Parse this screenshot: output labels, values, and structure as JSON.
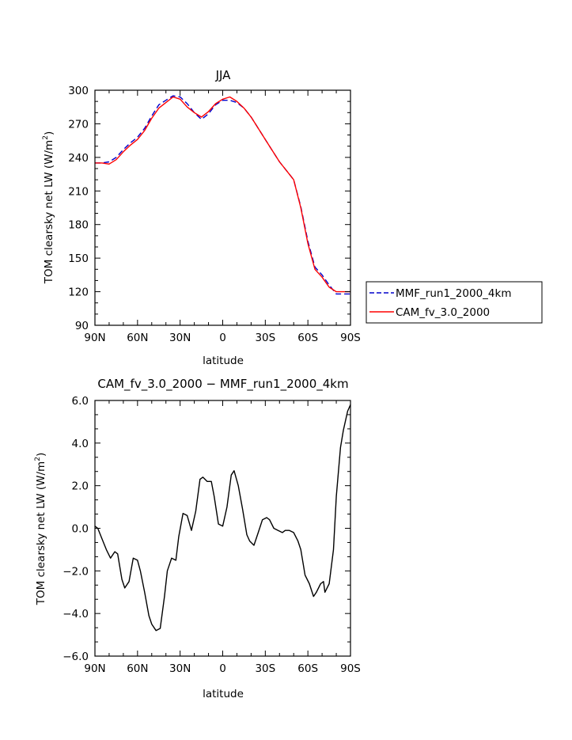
{
  "chart_data": [
    {
      "type": "line",
      "title": "JJA",
      "xlabel": "latitude",
      "ylabel": "TOM clearsky net LW (W/m²)",
      "ylabel_main": "TOM clearsky net LW (W/m",
      "ylabel_sup": "2",
      "ylabel_end": ")",
      "x_ticks": [
        "90N",
        "60N",
        "30N",
        "0",
        "30S",
        "60S",
        "90S"
      ],
      "y_ticks": [
        "90",
        "120",
        "150",
        "180",
        "210",
        "240",
        "270",
        "300"
      ],
      "xlim": [
        90,
        -90
      ],
      "ylim": [
        90,
        300
      ],
      "grid": false,
      "legend_position": "outside-right",
      "series": [
        {
          "name": "MMF_run1_2000_4km",
          "color": "#0000cc",
          "dash": "dashed",
          "x": [
            90,
            85,
            80,
            75,
            70,
            65,
            60,
            55,
            50,
            45,
            40,
            35,
            30,
            25,
            20,
            15,
            10,
            5,
            0,
            -5,
            -10,
            -15,
            -20,
            -25,
            -30,
            -35,
            -40,
            -45,
            -50,
            -55,
            -60,
            -65,
            -70,
            -75,
            -80,
            -85,
            -90
          ],
          "y": [
            235,
            235,
            236,
            240,
            247,
            253,
            258,
            266,
            277,
            287,
            291,
            295,
            294,
            288,
            280,
            274,
            279,
            287,
            291,
            291,
            289,
            284,
            276,
            266,
            256,
            246,
            236,
            228,
            220,
            196,
            165,
            142,
            135,
            126,
            118,
            118,
            118
          ]
        },
        {
          "name": "CAM_fv_3.0_2000",
          "color": "#ff0000",
          "dash": "solid",
          "x": [
            90,
            85,
            80,
            75,
            70,
            65,
            60,
            55,
            50,
            45,
            40,
            35,
            30,
            25,
            20,
            15,
            10,
            5,
            0,
            -5,
            -10,
            -15,
            -20,
            -25,
            -30,
            -35,
            -40,
            -45,
            -50,
            -55,
            -60,
            -65,
            -70,
            -75,
            -80,
            -85,
            -90
          ],
          "y": [
            235,
            235,
            234,
            238,
            245,
            251,
            256,
            264,
            275,
            284,
            289,
            294,
            292,
            285,
            280,
            276,
            281,
            288,
            292,
            294,
            290,
            284,
            276,
            266,
            256,
            246,
            236,
            228,
            220,
            195,
            163,
            140,
            133,
            124,
            120,
            120,
            120
          ]
        }
      ]
    },
    {
      "type": "line",
      "title": "CAM_fv_3.0_2000 − MMF_run1_2000_4km",
      "xlabel": "latitude",
      "ylabel": "TOM clearsky net LW (W/m²)",
      "ylabel_main": "TOM clearsky net LW (W/m",
      "ylabel_sup": "2",
      "ylabel_end": ")",
      "x_ticks": [
        "90N",
        "60N",
        "30N",
        "0",
        "30S",
        "60S",
        "90S"
      ],
      "y_ticks": [
        "−6.0",
        "−4.0",
        "−2.0",
        "0.0",
        "2.0",
        "4.0",
        "6.0"
      ],
      "xlim": [
        90,
        -90
      ],
      "ylim": [
        -6,
        6
      ],
      "grid": false,
      "series": [
        {
          "color": "#000000",
          "dash": "solid",
          "x": [
            90,
            88,
            85,
            82,
            79,
            76,
            74,
            71,
            69,
            66,
            63,
            60,
            58,
            55,
            52,
            50,
            47,
            44,
            41,
            39,
            36,
            33,
            31,
            28,
            25,
            22,
            19,
            16,
            14,
            11,
            8,
            6,
            3,
            0,
            -3,
            -6,
            -8,
            -11,
            -14,
            -17,
            -19,
            -22,
            -25,
            -28,
            -31,
            -33,
            -36,
            -39,
            -42,
            -44,
            -47,
            -50,
            -53,
            -55,
            -58,
            -61,
            -64,
            -66,
            -69,
            -71,
            -72,
            -75,
            -78,
            -80,
            -83,
            -85,
            -88,
            -90
          ],
          "y": [
            0.1,
            0.0,
            -0.5,
            -1.0,
            -1.4,
            -1.1,
            -1.2,
            -2.4,
            -2.8,
            -2.5,
            -1.4,
            -1.5,
            -2.0,
            -3.0,
            -4.1,
            -4.5,
            -4.8,
            -4.7,
            -3.2,
            -2.0,
            -1.4,
            -1.5,
            -0.4,
            0.7,
            0.6,
            -0.1,
            0.8,
            2.3,
            2.4,
            2.2,
            2.2,
            1.5,
            0.2,
            0.1,
            1.0,
            2.5,
            2.7,
            2.0,
            0.9,
            -0.3,
            -0.6,
            -0.8,
            -0.2,
            0.4,
            0.5,
            0.4,
            0.0,
            -0.1,
            -0.2,
            -0.1,
            -0.1,
            -0.2,
            -0.6,
            -1.0,
            -2.2,
            -2.6,
            -3.2,
            -3.0,
            -2.6,
            -2.5,
            -3.0,
            -2.6,
            -1.0,
            1.5,
            3.8,
            4.6,
            5.5,
            5.8
          ]
        }
      ]
    }
  ]
}
